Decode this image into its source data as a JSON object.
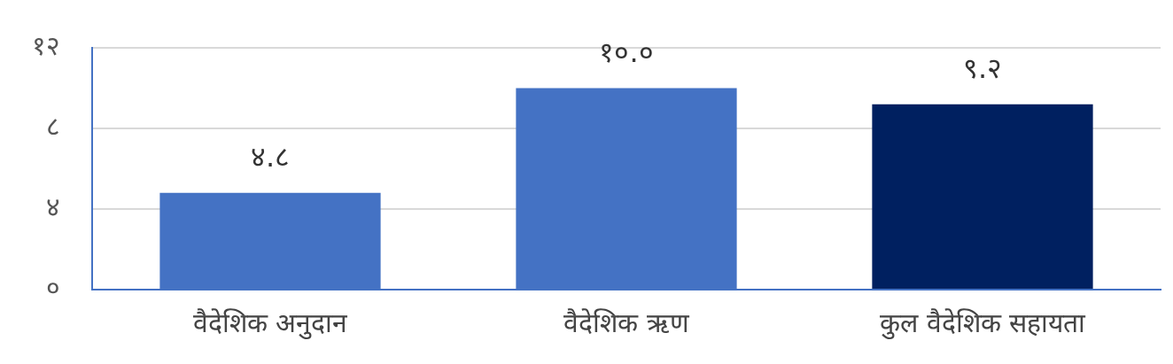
{
  "chart_data": {
    "type": "bar",
    "categories": [
      "वैदेशिक अनुदान",
      "वैदेशिक ऋण",
      "कुल वैदेशिक सहायता"
    ],
    "values": [
      4.8,
      10.0,
      9.2
    ],
    "colors": [
      "#4472c4",
      "#4472c4",
      "#002060"
    ],
    "value_labels": [
      "४.८",
      "१०.०",
      "९.२"
    ],
    "ylim": [
      0,
      12
    ],
    "yticks": [
      {
        "value": 0,
        "label": "०"
      },
      {
        "value": 4,
        "label": "४"
      },
      {
        "value": 8,
        "label": "८"
      },
      {
        "value": 12,
        "label": "१२"
      }
    ],
    "grid": "y",
    "legend": false
  }
}
